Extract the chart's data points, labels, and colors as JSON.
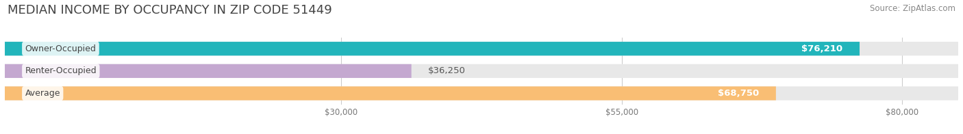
{
  "title": "MEDIAN INCOME BY OCCUPANCY IN ZIP CODE 51449",
  "source": "Source: ZipAtlas.com",
  "categories": [
    "Owner-Occupied",
    "Renter-Occupied",
    "Average"
  ],
  "values": [
    76210,
    36250,
    68750
  ],
  "bar_colors": [
    "#22b5bb",
    "#c4a8d0",
    "#f9be74"
  ],
  "value_labels": [
    "$76,210",
    "$36,250",
    "$68,750"
  ],
  "value_label_inside": [
    true,
    false,
    true
  ],
  "bar_bg_color": "#e8e8e8",
  "xlim_start": 0,
  "xlim_end": 85000,
  "xticks": [
    30000,
    55000,
    80000
  ],
  "xtick_labels": [
    "$30,000",
    "$55,000",
    "$80,000"
  ],
  "title_fontsize": 13,
  "source_fontsize": 8.5,
  "bar_height": 0.62,
  "background_color": "#ffffff",
  "category_label_fontsize": 9,
  "value_label_fontsize": 9.5
}
